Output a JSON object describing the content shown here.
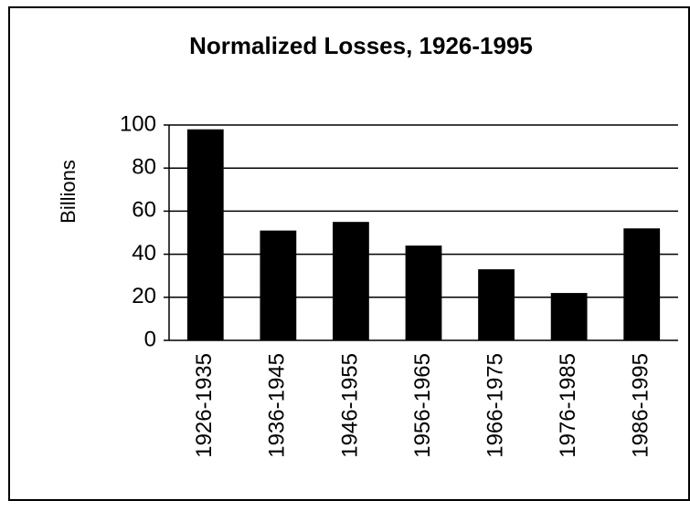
{
  "chart_data": {
    "type": "bar",
    "title": "Normalized Losses, 1926-1995",
    "y_label": "Billions",
    "categories": [
      "1926-1935",
      "1936-1945",
      "1946-1955",
      "1956-1965",
      "1966-1975",
      "1976-1985",
      "1986-1995"
    ],
    "values": [
      98,
      51,
      55,
      44,
      33,
      22,
      52
    ],
    "color": "#000000",
    "ylim": [
      0,
      100
    ],
    "yticks": [
      0,
      20,
      40,
      60,
      80,
      100
    ],
    "grid": true
  }
}
